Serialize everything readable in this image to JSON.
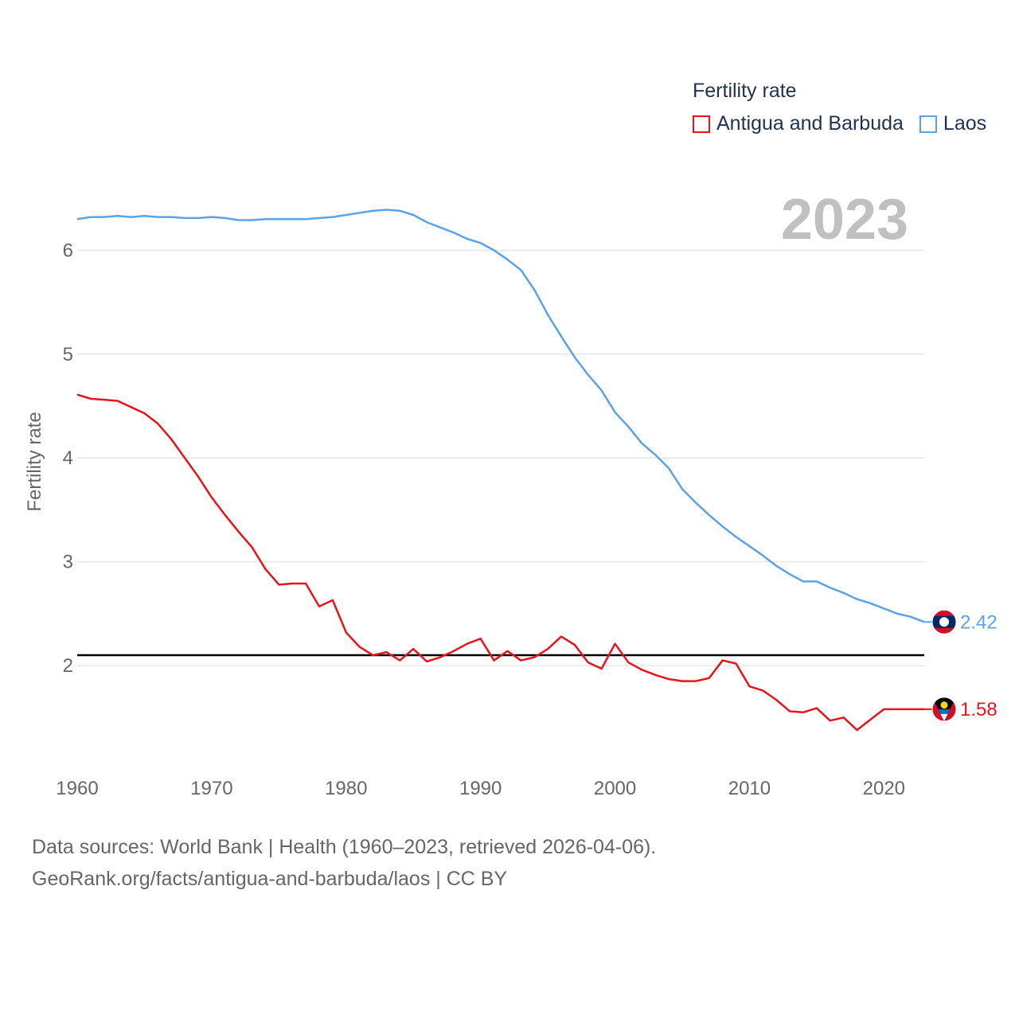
{
  "chart_data": {
    "type": "line",
    "title": "Fertility rate",
    "ylabel": "Fertility rate",
    "xlabel": "",
    "current_year_label": "2023",
    "xlim": [
      1960,
      2023
    ],
    "ylim": [
      1.05,
      6.8
    ],
    "y_ticks": [
      2,
      3,
      4,
      5,
      6
    ],
    "x_ticks": [
      1960,
      1970,
      1980,
      1990,
      2000,
      2010,
      2020
    ],
    "reference_line": 2.1,
    "x": [
      1960,
      1961,
      1962,
      1963,
      1964,
      1965,
      1966,
      1967,
      1968,
      1969,
      1970,
      1971,
      1972,
      1973,
      1974,
      1975,
      1976,
      1977,
      1978,
      1979,
      1980,
      1981,
      1982,
      1983,
      1984,
      1985,
      1986,
      1987,
      1988,
      1989,
      1990,
      1991,
      1992,
      1993,
      1994,
      1995,
      1996,
      1997,
      1998,
      1999,
      2000,
      2001,
      2002,
      2003,
      2004,
      2005,
      2006,
      2007,
      2008,
      2009,
      2010,
      2011,
      2012,
      2013,
      2014,
      2015,
      2016,
      2017,
      2018,
      2019,
      2020,
      2021,
      2022,
      2023
    ],
    "series": [
      {
        "name": "Antigua and Barbuda",
        "color": "#e8141c",
        "end_label": "1.58",
        "flag": "antigua-and-barbuda-flag-icon",
        "values": [
          4.61,
          4.57,
          4.56,
          4.55,
          4.49,
          4.43,
          4.33,
          4.18,
          4.0,
          3.82,
          3.62,
          3.45,
          3.29,
          3.14,
          2.93,
          2.78,
          2.79,
          2.79,
          2.57,
          2.63,
          2.32,
          2.18,
          2.1,
          2.13,
          2.05,
          2.16,
          2.04,
          2.08,
          2.14,
          2.21,
          2.26,
          2.05,
          2.14,
          2.05,
          2.08,
          2.16,
          2.28,
          2.2,
          2.03,
          1.97,
          2.21,
          2.03,
          1.96,
          1.91,
          1.87,
          1.85,
          1.85,
          1.88,
          2.05,
          2.02,
          1.8,
          1.76,
          1.67,
          1.56,
          1.55,
          1.59,
          1.47,
          1.5,
          1.38,
          1.48,
          1.58,
          1.58,
          1.58,
          1.58
        ]
      },
      {
        "name": "Laos",
        "color": "#5ba3e6",
        "end_label": "2.42",
        "flag": "laos-flag-icon",
        "values": [
          6.3,
          6.32,
          6.32,
          6.33,
          6.32,
          6.33,
          6.32,
          6.32,
          6.31,
          6.31,
          6.32,
          6.31,
          6.29,
          6.29,
          6.3,
          6.3,
          6.3,
          6.3,
          6.31,
          6.32,
          6.34,
          6.36,
          6.38,
          6.39,
          6.38,
          6.34,
          6.27,
          6.22,
          6.17,
          6.11,
          6.07,
          6.0,
          5.91,
          5.81,
          5.62,
          5.38,
          5.17,
          4.97,
          4.8,
          4.65,
          4.44,
          4.3,
          4.14,
          4.03,
          3.9,
          3.7,
          3.57,
          3.45,
          3.34,
          3.24,
          3.15,
          3.06,
          2.96,
          2.88,
          2.81,
          2.81,
          2.75,
          2.7,
          2.64,
          2.6,
          2.55,
          2.5,
          2.47,
          2.42
        ]
      }
    ]
  },
  "legend": {
    "title": "Fertility rate",
    "items": [
      {
        "label": "Antigua and Barbuda",
        "color": "#e8141c"
      },
      {
        "label": "Laos",
        "color": "#5ba3e6"
      }
    ]
  },
  "footer": {
    "line1": "Data sources: World Bank | Health (1960–2023, retrieved 2026-04-06).",
    "line2": "GeoRank.org/facts/antigua-and-barbuda/laos | CC BY"
  }
}
